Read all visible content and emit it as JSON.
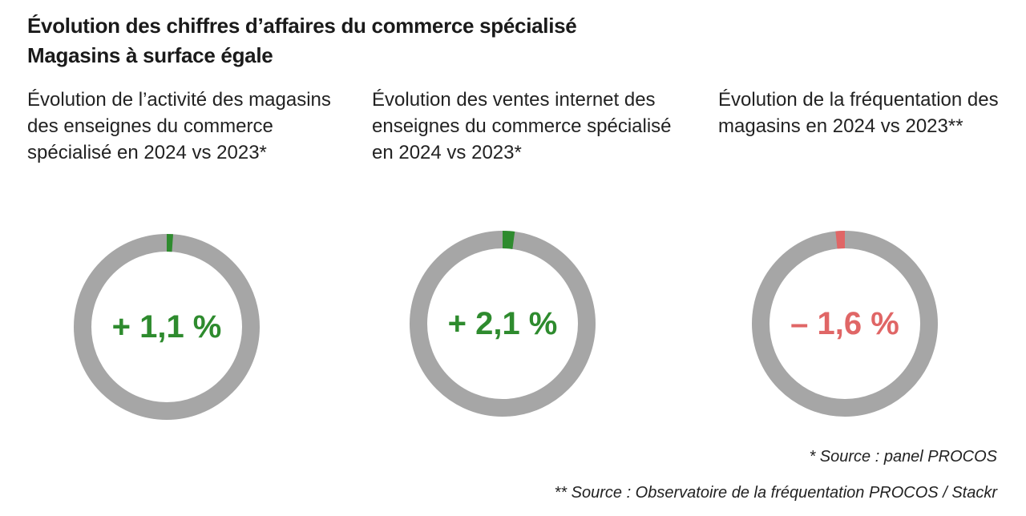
{
  "title": {
    "line1": "Évolution des chiffres d’affaires du commerce spécialisé",
    "line2": "Magasins à surface égale"
  },
  "chart_data": [
    {
      "type": "pie",
      "label": "Évolution de l’activité des magasins des enseignes du commerce spécialisé en 2024 vs 2023*",
      "value_label": "+ 1,1 %",
      "value": 1.1,
      "color": "#2e8b2e",
      "track_color": "#a6a6a6"
    },
    {
      "type": "pie",
      "label": "Évolution des ventes internet des enseignes du commerce spécialisé en 2024 vs 2023*",
      "value_label": "+ 2,1 %",
      "value": 2.1,
      "color": "#2e8b2e",
      "track_color": "#a6a6a6"
    },
    {
      "type": "pie",
      "label": "Évolution de la fréquentation des magasins en 2024 vs 2023**",
      "value_label": "– 1,6 %",
      "value": -1.6,
      "color": "#e06666",
      "track_color": "#a6a6a6"
    }
  ],
  "sources": {
    "source1": "* Source : panel PROCOS",
    "source2": "** Source : Observatoire de la fréquentation PROCOS / Stackr"
  }
}
